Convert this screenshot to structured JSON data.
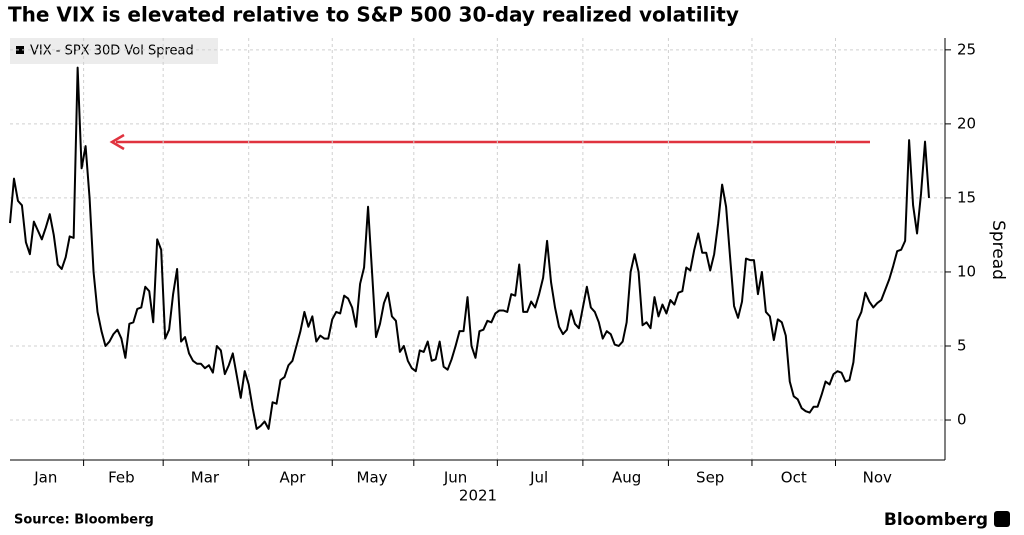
{
  "chart_data": {
    "type": "line",
    "title": "The VIX is elevated relative to S&P 500 30-day realized volatility",
    "ylabel": "Spread",
    "x_sublabel": "2021",
    "source": "Source: Bloomberg",
    "brand": "Bloomberg",
    "legend": "top-left",
    "grid": true,
    "ylim": [
      -2.7,
      25.8
    ],
    "yticks": [
      0,
      5,
      10,
      15,
      20,
      25
    ],
    "categories": [
      null,
      null,
      null,
      null,
      null,
      null,
      null,
      null,
      null,
      "Jan",
      null,
      null,
      null,
      null,
      null,
      null,
      null,
      null,
      null,
      null,
      null,
      null,
      null,
      null,
      null,
      null,
      null,
      null,
      "Feb",
      null,
      null,
      null,
      null,
      null,
      null,
      null,
      null,
      null,
      null,
      null,
      null,
      null,
      null,
      null,
      null,
      null,
      null,
      null,
      null,
      "Mar",
      null,
      null,
      null,
      null,
      null,
      null,
      null,
      null,
      null,
      null,
      null,
      null,
      null,
      null,
      null,
      null,
      null,
      null,
      null,
      null,
      null,
      "Apr",
      null,
      null,
      null,
      null,
      null,
      null,
      null,
      null,
      null,
      null,
      null,
      null,
      null,
      null,
      null,
      null,
      null,
      null,
      null,
      "May",
      null,
      null,
      null,
      null,
      null,
      null,
      null,
      null,
      null,
      null,
      null,
      null,
      null,
      null,
      null,
      null,
      null,
      null,
      null,
      null,
      "Jun",
      null,
      null,
      null,
      null,
      null,
      null,
      null,
      null,
      null,
      null,
      null,
      null,
      null,
      null,
      null,
      null,
      null,
      null,
      null,
      null,
      "Jul",
      null,
      null,
      null,
      null,
      null,
      null,
      null,
      null,
      null,
      null,
      null,
      null,
      null,
      null,
      null,
      null,
      null,
      null,
      null,
      null,
      null,
      "Aug",
      null,
      null,
      null,
      null,
      null,
      null,
      null,
      null,
      null,
      null,
      null,
      null,
      null,
      null,
      null,
      null,
      null,
      null,
      null,
      null,
      "Sep",
      null,
      null,
      null,
      null,
      null,
      null,
      null,
      null,
      null,
      null,
      null,
      null,
      null,
      null,
      null,
      null,
      null,
      null,
      null,
      null,
      "Oct",
      null,
      null,
      null,
      null,
      null,
      null,
      null,
      null,
      null,
      null,
      null,
      null,
      null,
      null,
      null,
      null,
      null,
      null,
      null,
      null,
      "Nov",
      null,
      null,
      null,
      null,
      null,
      null,
      null,
      null,
      null,
      null,
      null,
      null,
      null
    ],
    "series": [
      {
        "name": "VIX - SPX 30D Vol Spread",
        "color": "#000000",
        "values": [
          13.3,
          16.3,
          14.8,
          14.5,
          12,
          11.2,
          13.4,
          12.8,
          12.2,
          13,
          13.9,
          12.5,
          10.5,
          10.2,
          11,
          12.4,
          12.3,
          23.8,
          17,
          18.5,
          15,
          10,
          7.3,
          6,
          5,
          5.3,
          5.8,
          6.1,
          5.5,
          4.2,
          6.5,
          6.6,
          7.5,
          7.6,
          9,
          8.7,
          6.6,
          12.2,
          11.5,
          5.5,
          6.1,
          8.5,
          10.2,
          5.3,
          5.6,
          4.5,
          4,
          3.8,
          3.8,
          3.5,
          3.7,
          3.2,
          5,
          4.7,
          3.1,
          3.7,
          4.5,
          3,
          1.5,
          3.3,
          2.4,
          0.8,
          -0.6,
          -0.4,
          -0.1,
          -0.6,
          1.2,
          1.1,
          2.7,
          2.9,
          3.7,
          4,
          5,
          6,
          7.3,
          6.3,
          7,
          5.3,
          5.7,
          5.5,
          5.5,
          6.8,
          7.3,
          7.2,
          8.4,
          8.2,
          7.6,
          6.3,
          9.2,
          10.3,
          14.4,
          10,
          5.6,
          6.5,
          7.9,
          8.6,
          7,
          6.7,
          4.6,
          5,
          4,
          3.5,
          3.3,
          4.7,
          4.6,
          5.3,
          4,
          4.1,
          5.3,
          3.6,
          3.4,
          4.1,
          5,
          6,
          6,
          8.3,
          5,
          4.2,
          6,
          6.1,
          6.7,
          6.6,
          7.2,
          7.4,
          7.4,
          7.3,
          8.5,
          8.4,
          10.5,
          7.3,
          7.3,
          8,
          7.6,
          8.5,
          9.6,
          12.1,
          9.3,
          7.6,
          6.3,
          5.8,
          6.1,
          7.4,
          6.5,
          6.2,
          7.6,
          9,
          7.6,
          7.3,
          6.6,
          5.5,
          6,
          5.8,
          5.1,
          5,
          5.3,
          6.6,
          10,
          11.2,
          10,
          6.4,
          6.6,
          6.2,
          8.3,
          7,
          7.8,
          7.2,
          8.1,
          7.8,
          8.6,
          8.7,
          10.3,
          10.1,
          11.5,
          12.6,
          11.3,
          11.3,
          10.1,
          11.2,
          13.3,
          15.9,
          14.4,
          11,
          7.7,
          6.9,
          8,
          10.9,
          10.8,
          10.8,
          8.5,
          10,
          7.3,
          7,
          5.4,
          6.8,
          6.6,
          5.7,
          2.6,
          1.6,
          1.4,
          0.8,
          0.6,
          0.5,
          0.9,
          0.9,
          1.7,
          2.6,
          2.4,
          3.1,
          3.3,
          3.2,
          2.6,
          2.7,
          3.9,
          6.7,
          7.3,
          8.6,
          8,
          7.6,
          7.9,
          8.1,
          8.8,
          9.5,
          10.4,
          11.4,
          11.5,
          12.1,
          18.9,
          14.5,
          12.6,
          15.3,
          18.8,
          15
        ]
      }
    ]
  }
}
